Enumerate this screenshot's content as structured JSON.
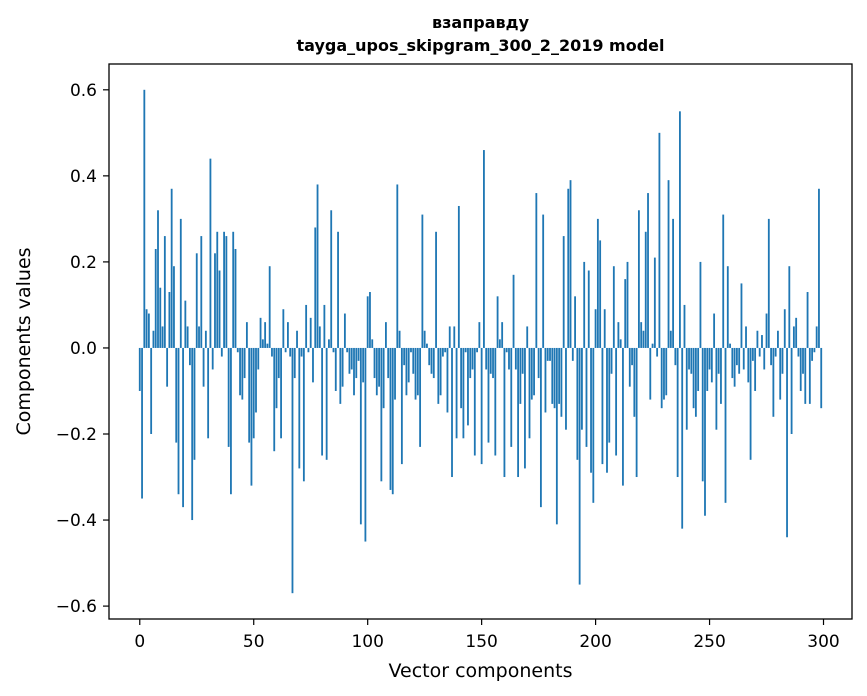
{
  "chart_data": {
    "type": "bar",
    "title_line1": "взаправду",
    "title_line2": "tayga_upos_skipgram_300_2_2019 model",
    "xlabel": "Vector components",
    "ylabel": "Components values",
    "xlim": [
      -13.5,
      312.5
    ],
    "ylim": [
      -0.63,
      0.66
    ],
    "xticks": [
      0,
      50,
      100,
      150,
      200,
      250,
      300
    ],
    "xtick_labels": [
      "0",
      "50",
      "100",
      "150",
      "200",
      "250",
      "300"
    ],
    "yticks": [
      -0.6,
      -0.4,
      -0.2,
      0.0,
      0.2,
      0.4,
      0.6
    ],
    "ytick_labels": [
      "−0.6",
      "−0.4",
      "−0.2",
      "0.0",
      "0.2",
      "0.4",
      "0.6"
    ],
    "bar_color": "#1f77b4",
    "values": [
      -0.1,
      -0.35,
      0.6,
      0.09,
      0.08,
      -0.2,
      0.04,
      0.23,
      0.32,
      0.14,
      0.05,
      0.26,
      -0.09,
      0.13,
      0.37,
      0.19,
      -0.22,
      -0.34,
      0.3,
      -0.37,
      0.11,
      0.05,
      -0.04,
      -0.4,
      -0.26,
      0.22,
      0.05,
      0.26,
      -0.09,
      0.04,
      -0.21,
      0.44,
      -0.05,
      0.22,
      0.27,
      0.18,
      -0.02,
      0.27,
      0.26,
      -0.23,
      -0.34,
      0.27,
      0.23,
      -0.01,
      -0.11,
      -0.12,
      -0.07,
      0.06,
      -0.22,
      -0.32,
      -0.21,
      -0.15,
      -0.05,
      0.07,
      0.02,
      0.06,
      0.01,
      0.19,
      -0.02,
      -0.24,
      -0.14,
      -0.07,
      -0.21,
      0.09,
      -0.01,
      0.06,
      -0.02,
      -0.57,
      -0.07,
      0.04,
      -0.28,
      -0.02,
      -0.31,
      0.1,
      -0.01,
      0.07,
      -0.08,
      0.28,
      0.38,
      0.05,
      -0.25,
      0.1,
      -0.26,
      0.02,
      0.32,
      -0.01,
      -0.1,
      0.27,
      -0.13,
      -0.09,
      0.08,
      -0.01,
      -0.06,
      -0.05,
      -0.11,
      -0.07,
      -0.03,
      -0.41,
      -0.08,
      -0.45,
      0.12,
      0.13,
      0.02,
      -0.07,
      -0.11,
      -0.09,
      -0.31,
      -0.14,
      0.06,
      -0.07,
      -0.33,
      -0.34,
      -0.12,
      0.38,
      0.04,
      -0.27,
      -0.04,
      -0.11,
      -0.08,
      -0.01,
      -0.06,
      -0.12,
      -0.11,
      -0.23,
      0.31,
      0.04,
      0.01,
      -0.04,
      -0.06,
      -0.07,
      0.27,
      -0.13,
      -0.11,
      -0.02,
      -0.01,
      -0.15,
      0.05,
      -0.3,
      0.05,
      -0.21,
      0.33,
      -0.14,
      -0.21,
      -0.01,
      -0.18,
      -0.07,
      -0.05,
      -0.25,
      -0.01,
      0.06,
      -0.27,
      0.46,
      -0.05,
      -0.22,
      -0.06,
      -0.07,
      -0.25,
      0.12,
      0.02,
      0.06,
      -0.3,
      -0.01,
      -0.05,
      -0.23,
      0.17,
      -0.05,
      -0.3,
      -0.13,
      -0.06,
      -0.28,
      0.05,
      -0.21,
      -0.12,
      -0.11,
      0.36,
      -0.07,
      -0.37,
      0.31,
      -0.15,
      -0.03,
      -0.03,
      -0.13,
      -0.14,
      -0.41,
      -0.13,
      -0.16,
      0.26,
      -0.19,
      0.37,
      0.39,
      -0.03,
      0.12,
      -0.26,
      -0.55,
      -0.19,
      0.2,
      -0.23,
      0.18,
      -0.29,
      -0.36,
      0.09,
      0.3,
      0.25,
      -0.27,
      0.09,
      -0.29,
      -0.22,
      -0.06,
      0.19,
      -0.25,
      0.06,
      0.02,
      -0.32,
      0.16,
      0.2,
      -0.09,
      -0.04,
      -0.16,
      -0.3,
      0.32,
      0.06,
      0.04,
      0.27,
      0.36,
      -0.12,
      0.01,
      0.21,
      -0.02,
      0.5,
      -0.14,
      -0.12,
      -0.11,
      0.39,
      0.04,
      0.3,
      -0.04,
      -0.3,
      0.55,
      -0.42,
      0.1,
      -0.19,
      -0.05,
      -0.06,
      -0.14,
      -0.16,
      -0.1,
      0.2,
      -0.31,
      -0.39,
      -0.1,
      -0.05,
      -0.08,
      0.08,
      -0.19,
      -0.06,
      -0.13,
      0.31,
      -0.36,
      0.19,
      0.01,
      -0.07,
      -0.09,
      -0.04,
      -0.06,
      0.15,
      -0.05,
      0.05,
      -0.08,
      -0.26,
      -0.03,
      -0.1,
      0.04,
      -0.02,
      0.03,
      -0.05,
      0.08,
      0.3,
      -0.04,
      -0.16,
      -0.02,
      0.04,
      -0.12,
      -0.06,
      0.09,
      -0.44,
      0.19,
      -0.2,
      0.05,
      0.07,
      -0.02,
      -0.1,
      -0.06,
      -0.13,
      0.13,
      -0.13,
      -0.03,
      -0.01,
      0.05,
      0.37,
      -0.14
    ]
  }
}
